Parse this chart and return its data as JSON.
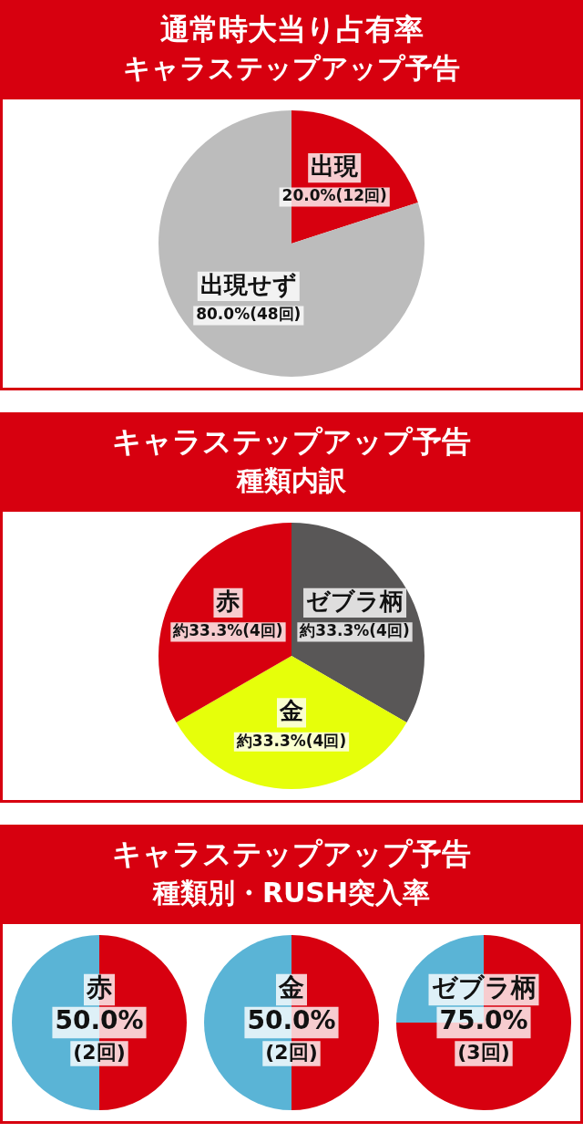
{
  "chart_data": [
    {
      "type": "pie",
      "title": "通常時大当り占有率",
      "subtitle": "キャラステップアップ予告",
      "categories": [
        "出現",
        "出現せず"
      ],
      "values": [
        20.0,
        80.0
      ],
      "colors": [
        "#d7000f",
        "#bcbcbc"
      ],
      "value_labels": [
        "20.0%(12回)",
        "80.0%(48回)"
      ]
    },
    {
      "type": "pie",
      "title": "キャラステップアップ予告",
      "subtitle": "種類内訳",
      "categories": [
        "ゼブラ柄",
        "金",
        "赤"
      ],
      "values": [
        33.3,
        33.3,
        33.3
      ],
      "colors": [
        "#595757",
        "#e6ff0a",
        "#d7000f"
      ],
      "value_labels": [
        "約33.3%(4回)",
        "約33.3%(4回)",
        "約33.3%(4回)"
      ]
    },
    {
      "type": "other",
      "title": "キャラステップアップ予告",
      "subtitle": "種類別・RUSH突入率"
    },
    {
      "type": "pie",
      "title": "赤",
      "categories": [
        null,
        null
      ],
      "values": [
        50,
        50
      ],
      "colors": [
        "#d7000f",
        "#5ab4d6"
      ],
      "value_labels": [
        "50.0%",
        null
      ],
      "annotations": [
        "(2回)"
      ]
    },
    {
      "type": "pie",
      "title": "金",
      "categories": [
        null,
        null
      ],
      "values": [
        50,
        50
      ],
      "colors": [
        "#d7000f",
        "#5ab4d6"
      ],
      "value_labels": [
        "50.0%",
        null
      ],
      "annotations": [
        "(2回)"
      ]
    },
    {
      "type": "pie",
      "title": "ゼブラ柄",
      "categories": [
        null,
        null
      ],
      "values": [
        75,
        25
      ],
      "colors": [
        "#d7000f",
        "#5ab4d6"
      ],
      "value_labels": [
        "75.0%",
        null
      ],
      "annotations": [
        "(3回)"
      ]
    }
  ]
}
